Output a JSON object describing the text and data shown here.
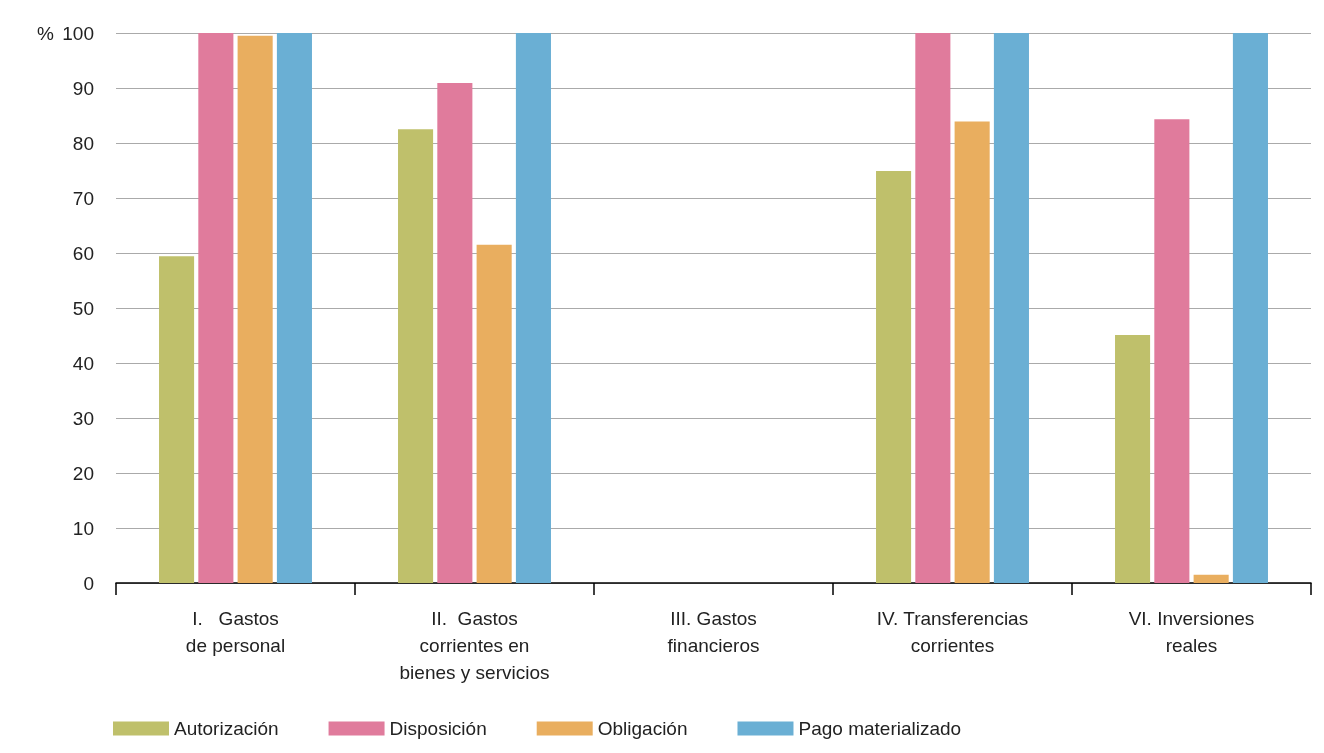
{
  "chart_data": {
    "type": "bar",
    "ylabel": "%",
    "categories": [
      "I.   Gastos\nde personal",
      "II.  Gastos\ncorrientes en\nbienes y servicios",
      "III. Gastos\nfinancieros",
      "IV. Transferencias\ncorrientes",
      "VI. Inversiones\nreales"
    ],
    "series": [
      {
        "name": "Autorización",
        "color": "#bfc06b",
        "values": [
          59.4,
          82.5,
          null,
          74.9,
          45.1
        ]
      },
      {
        "name": "Disposición",
        "color": "#e07b9c",
        "values": [
          100,
          90.9,
          null,
          100,
          84.3
        ]
      },
      {
        "name": "Obligación",
        "color": "#e9ae5f",
        "values": [
          99.5,
          61.5,
          null,
          83.9,
          1.5
        ]
      },
      {
        "name": "Pago materializado",
        "color": "#6aafd4",
        "values": [
          100,
          100,
          null,
          100,
          100
        ]
      }
    ],
    "ylim": [
      0,
      100
    ],
    "yticks": [
      0,
      10,
      20,
      30,
      40,
      50,
      60,
      70,
      80,
      90,
      100
    ],
    "grid": "y",
    "legend": "bottom left"
  }
}
